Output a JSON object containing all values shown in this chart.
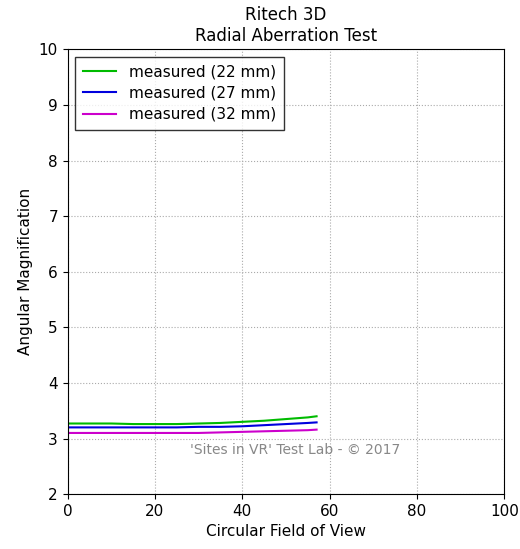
{
  "title": "Ritech 3D\nRadial Aberration Test",
  "xlabel": "Circular Field of View",
  "ylabel": "Angular Magnification",
  "xlim": [
    0,
    100
  ],
  "ylim": [
    2,
    10
  ],
  "yticks": [
    2,
    3,
    4,
    5,
    6,
    7,
    8,
    9,
    10
  ],
  "xticks": [
    0,
    20,
    40,
    60,
    80,
    100
  ],
  "watermark": "'Sites in VR' Test Lab - © 2017",
  "series": [
    {
      "label": "measured (22 mm)",
      "color": "#00bb00",
      "x": [
        0,
        5,
        10,
        15,
        20,
        25,
        30,
        35,
        40,
        45,
        50,
        55,
        57
      ],
      "y": [
        3.27,
        3.27,
        3.27,
        3.26,
        3.26,
        3.26,
        3.27,
        3.28,
        3.3,
        3.32,
        3.35,
        3.38,
        3.4
      ]
    },
    {
      "label": "measured (27 mm)",
      "color": "#0000dd",
      "x": [
        0,
        5,
        10,
        15,
        20,
        25,
        30,
        35,
        40,
        45,
        50,
        55,
        57
      ],
      "y": [
        3.2,
        3.2,
        3.2,
        3.2,
        3.2,
        3.2,
        3.21,
        3.21,
        3.22,
        3.24,
        3.26,
        3.28,
        3.29
      ]
    },
    {
      "label": "measured (32 mm)",
      "color": "#cc00cc",
      "x": [
        0,
        5,
        10,
        15,
        20,
        25,
        30,
        35,
        40,
        45,
        50,
        55,
        57
      ],
      "y": [
        3.1,
        3.1,
        3.1,
        3.1,
        3.1,
        3.1,
        3.1,
        3.11,
        3.12,
        3.13,
        3.14,
        3.15,
        3.16
      ]
    }
  ],
  "grid_color": "#aaaaaa",
  "grid_linestyle": ":",
  "background_color": "#ffffff",
  "legend_loc": "upper left",
  "title_fontsize": 12,
  "label_fontsize": 11,
  "tick_fontsize": 11,
  "legend_fontsize": 11,
  "watermark_fontsize": 10,
  "watermark_color": "#888888"
}
